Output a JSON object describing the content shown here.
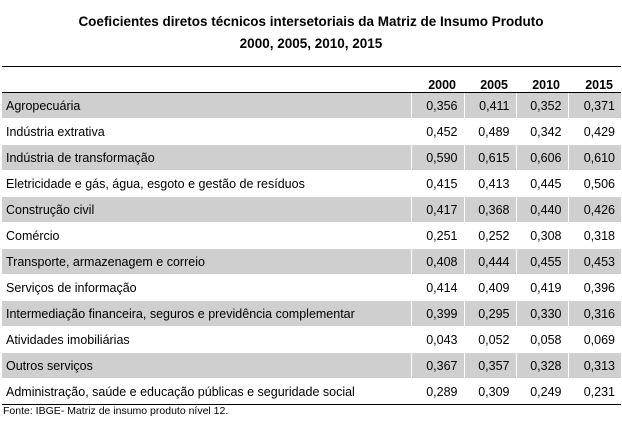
{
  "title": {
    "line1": "Coeficientes diretos técnicos intersetoriais da Matriz de Insumo Produto",
    "line2": "2000, 2005, 2010, 2015"
  },
  "table": {
    "headers": [
      "",
      "2000",
      "2005",
      "2010",
      "2015"
    ],
    "rows": [
      {
        "label": "Agropecuária",
        "values": [
          "0,356",
          "0,411",
          "0,352",
          "0,371"
        ]
      },
      {
        "label": "Indústria extrativa",
        "values": [
          "0,452",
          "0,489",
          "0,342",
          "0,429"
        ]
      },
      {
        "label": "Indústria de transformação",
        "values": [
          "0,590",
          "0,615",
          "0,606",
          "0,610"
        ]
      },
      {
        "label": "Eletricidade e gás, água, esgoto e gestão de resíduos",
        "values": [
          "0,415",
          "0,413",
          "0,445",
          "0,506"
        ]
      },
      {
        "label": "Construção civil",
        "values": [
          "0,417",
          "0,368",
          "0,440",
          "0,426"
        ]
      },
      {
        "label": "Comércio",
        "values": [
          "0,251",
          "0,252",
          "0,308",
          "0,318"
        ]
      },
      {
        "label": "Transporte, armazenagem e correio",
        "values": [
          "0,408",
          "0,444",
          "0,455",
          "0,453"
        ]
      },
      {
        "label": "Serviços de informação",
        "values": [
          "0,414",
          "0,409",
          "0,419",
          "0,396"
        ]
      },
      {
        "label": "Intermediação financeira, seguros e previdência complementar",
        "values": [
          "0,399",
          "0,295",
          "0,330",
          "0,316"
        ]
      },
      {
        "label": "Atividades imobiliárias",
        "values": [
          "0,043",
          "0,052",
          "0,058",
          "0,069"
        ]
      },
      {
        "label": "Outros serviços",
        "values": [
          "0,367",
          "0,357",
          "0,328",
          "0,313"
        ]
      },
      {
        "label": "Administração, saúde e educação públicas e seguridade social",
        "values": [
          "0,289",
          "0,309",
          "0,249",
          "0,231"
        ]
      }
    ]
  },
  "source": "Fonte: IBGE- Matriz de insumo produto nível 12."
}
